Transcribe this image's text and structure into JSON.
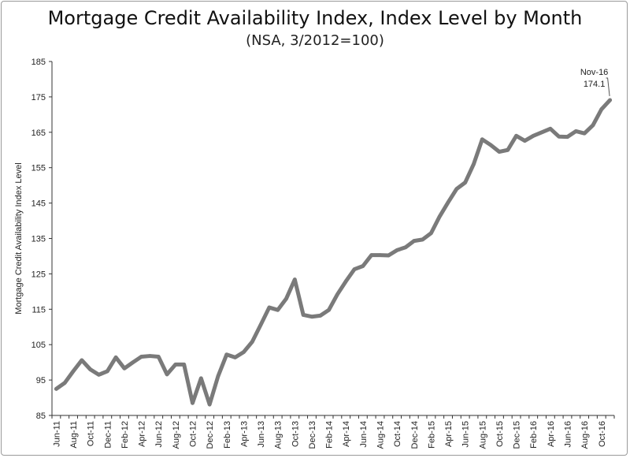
{
  "chart_data": {
    "type": "line",
    "title": "Mortgage Credit Availability Index, Index Level by Month",
    "subtitle": "(NSA, 3/2012=100)",
    "xlabel": "",
    "ylabel": "Mortgage Credit Availability Index Level",
    "ylim": [
      85,
      185
    ],
    "yticks": [
      85,
      95,
      105,
      115,
      125,
      135,
      145,
      155,
      165,
      175,
      185
    ],
    "grid": false,
    "line_color": "#7a7a7a",
    "x_tick_labels": [
      "Jun-11",
      "Aug-11",
      "Oct-11",
      "Dec-11",
      "Feb-12",
      "Apr-12",
      "Jun-12",
      "Aug-12",
      "Oct-12",
      "Dec-12",
      "Feb-13",
      "Apr-13",
      "Jun-13",
      "Aug-13",
      "Oct-13",
      "Dec-13",
      "Feb-14",
      "Apr-14",
      "Jun-14",
      "Aug-14",
      "Oct-14",
      "Dec-14",
      "Feb-15",
      "Apr-15",
      "Jun-15",
      "Aug-15",
      "Oct-15",
      "Dec-15",
      "Feb-16",
      "Apr-16",
      "Jun-16",
      "Aug-16",
      "Oct-16"
    ],
    "x": [
      "Jun-11",
      "Jul-11",
      "Aug-11",
      "Sep-11",
      "Oct-11",
      "Nov-11",
      "Dec-11",
      "Jan-12",
      "Feb-12",
      "Mar-12",
      "Apr-12",
      "May-12",
      "Jun-12",
      "Jul-12",
      "Aug-12",
      "Sep-12",
      "Oct-12",
      "Nov-12",
      "Dec-12",
      "Jan-13",
      "Feb-13",
      "Mar-13",
      "Apr-13",
      "May-13",
      "Jun-13",
      "Jul-13",
      "Aug-13",
      "Sep-13",
      "Oct-13",
      "Nov-13",
      "Dec-13",
      "Jan-14",
      "Feb-14",
      "Mar-14",
      "Apr-14",
      "May-14",
      "Jun-14",
      "Jul-14",
      "Aug-14",
      "Sep-14",
      "Oct-14",
      "Nov-14",
      "Dec-14",
      "Jan-15",
      "Feb-15",
      "Mar-15",
      "Apr-15",
      "May-15",
      "Jun-15",
      "Jul-15",
      "Aug-15",
      "Sep-15",
      "Oct-15",
      "Nov-15",
      "Dec-15",
      "Jan-16",
      "Feb-16",
      "Mar-16",
      "Apr-16",
      "May-16",
      "Jun-16",
      "Jul-16",
      "Aug-16",
      "Sep-16",
      "Oct-16",
      "Nov-16"
    ],
    "series": [
      {
        "values": [
          92.5,
          94.2,
          97.5,
          100.6,
          98.0,
          96.5,
          97.5,
          101.4,
          98.3,
          100.0,
          101.6,
          101.8,
          101.6,
          96.6,
          99.4,
          99.4,
          88.5,
          95.5,
          88.1,
          96.1,
          102.2,
          101.4,
          102.9,
          105.8,
          110.6,
          115.5,
          114.8,
          118.0,
          123.4,
          113.4,
          112.9,
          113.2,
          114.8,
          119.2,
          122.9,
          126.3,
          127.2,
          130.3,
          130.3,
          130.2,
          131.7,
          132.5,
          134.3,
          134.7,
          136.5,
          141.2,
          145.2,
          149.0,
          150.8,
          156.0,
          163.0,
          161.4,
          159.5,
          160.0,
          164.0,
          162.6,
          164.0,
          165.0,
          166.0,
          163.8,
          163.7,
          165.3,
          164.7,
          167.0,
          171.5,
          174.1
        ]
      }
    ],
    "annotation": {
      "label": "Nov-16",
      "value": "174.1"
    }
  }
}
